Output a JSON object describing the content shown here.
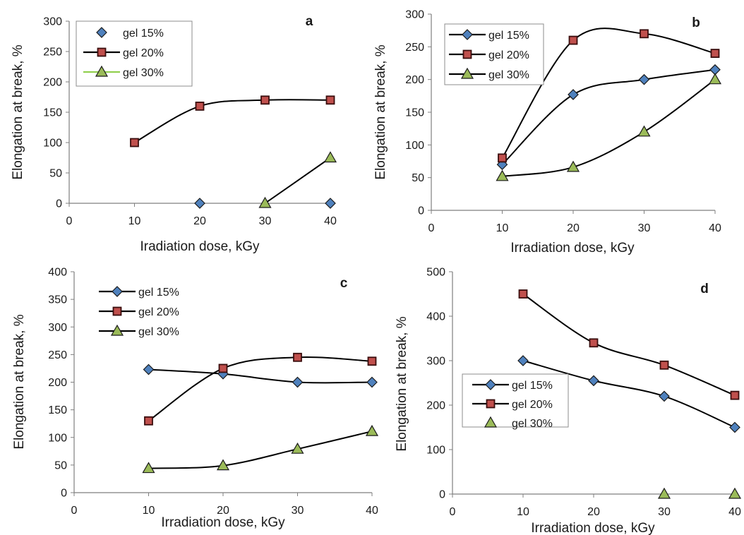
{
  "colors": {
    "line": "#000000",
    "axis": "#7f7f7f",
    "gel15_marker": "#4f81bd",
    "gel20_marker": "#c0504d",
    "gel30_marker": "#9bbb59",
    "gel30_legend_line_a": "#92d050"
  },
  "chart_data": [
    {
      "type": "line",
      "panel_label": "a",
      "xlabel": "Iradiation dose, kGy",
      "ylabel": "Elongation at break, %",
      "xlim": [
        0,
        40
      ],
      "ylim": [
        0,
        300
      ],
      "xticks": [
        "0",
        "10",
        "20",
        "30",
        "40"
      ],
      "yticks": [
        "0",
        "50",
        "100",
        "150",
        "200",
        "250",
        "300"
      ],
      "legend": "top-left boxed",
      "series": [
        {
          "name": "gel 15%",
          "marker": "diamond",
          "line": false,
          "x": [
            20,
            40
          ],
          "y": [
            0,
            0
          ]
        },
        {
          "name": "gel 20%",
          "marker": "square",
          "line": true,
          "x": [
            10,
            20,
            30,
            40
          ],
          "y": [
            100,
            160,
            170,
            170
          ]
        },
        {
          "name": "gel 30%",
          "marker": "triangle",
          "line": true,
          "x": [
            30,
            40
          ],
          "y": [
            0,
            75
          ]
        }
      ]
    },
    {
      "type": "line",
      "panel_label": "b",
      "xlabel": "Irradiation dose, kGy",
      "ylabel": "Elongation at break, %",
      "xlim": [
        0,
        40
      ],
      "ylim": [
        0,
        300
      ],
      "xticks": [
        "0",
        "10",
        "20",
        "30",
        "40"
      ],
      "yticks": [
        "0",
        "50",
        "100",
        "150",
        "200",
        "250",
        "300"
      ],
      "legend": "top-left boxed",
      "series": [
        {
          "name": "gel 15%",
          "marker": "diamond",
          "line": true,
          "x": [
            10,
            20,
            30,
            40
          ],
          "y": [
            70,
            177,
            200,
            215
          ]
        },
        {
          "name": "gel 20%",
          "marker": "square",
          "line": true,
          "x": [
            10,
            20,
            30,
            40
          ],
          "y": [
            80,
            260,
            270,
            240
          ]
        },
        {
          "name": "gel 30%",
          "marker": "triangle",
          "line": true,
          "x": [
            10,
            20,
            30,
            40
          ],
          "y": [
            52,
            66,
            120,
            200
          ]
        }
      ]
    },
    {
      "type": "line",
      "panel_label": "c",
      "xlabel": "Irradiation dose, kGy",
      "ylabel": "Elongation at break, %",
      "xlim": [
        0,
        40
      ],
      "ylim": [
        0,
        400
      ],
      "xticks": [
        "0",
        "10",
        "20",
        "30",
        "40"
      ],
      "yticks": [
        "0",
        "50",
        "100",
        "150",
        "200",
        "250",
        "300",
        "350",
        "400"
      ],
      "legend": "top-left",
      "series": [
        {
          "name": "gel 15%",
          "marker": "diamond",
          "line": true,
          "x": [
            10,
            20,
            30,
            40
          ],
          "y": [
            223,
            215,
            200,
            200
          ]
        },
        {
          "name": "gel 20%",
          "marker": "square",
          "line": true,
          "x": [
            10,
            20,
            30,
            40
          ],
          "y": [
            130,
            225,
            245,
            238
          ]
        },
        {
          "name": "gel 30%",
          "marker": "triangle",
          "line": true,
          "x": [
            10,
            20,
            30,
            40
          ],
          "y": [
            44,
            49,
            79,
            111
          ]
        }
      ]
    },
    {
      "type": "line",
      "panel_label": "d",
      "xlabel": "Irradiation dose, kGy",
      "ylabel": "Elongation at break, %",
      "xlim": [
        0,
        40
      ],
      "ylim": [
        0,
        500
      ],
      "xticks": [
        "0",
        "10",
        "20",
        "30",
        "40"
      ],
      "yticks": [
        "0",
        "100",
        "200",
        "300",
        "400",
        "500"
      ],
      "legend": "bottom-left boxed",
      "series": [
        {
          "name": "gel 15%",
          "marker": "diamond",
          "line": true,
          "x": [
            10,
            20,
            30,
            40
          ],
          "y": [
            300,
            255,
            220,
            150
          ]
        },
        {
          "name": "gel 20%",
          "marker": "square",
          "line": true,
          "x": [
            10,
            20,
            30,
            40
          ],
          "y": [
            450,
            340,
            290,
            222
          ]
        },
        {
          "name": "gel 30%",
          "marker": "triangle",
          "line": false,
          "x": [
            30,
            40
          ],
          "y": [
            0,
            0
          ]
        }
      ]
    }
  ]
}
